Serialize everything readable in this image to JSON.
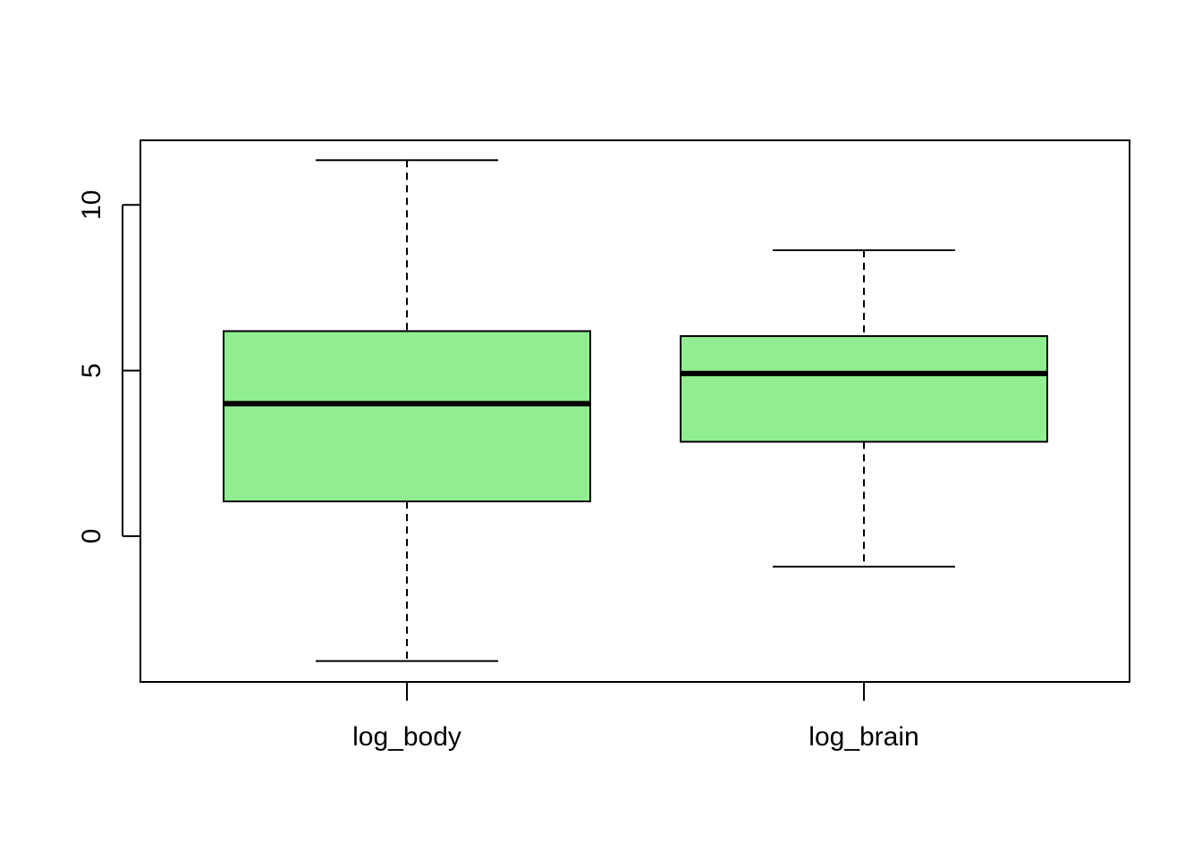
{
  "chart_data": {
    "type": "boxplot",
    "title": "",
    "xlabel": "",
    "ylabel": "",
    "categories": [
      "log_body",
      "log_brain"
    ],
    "boxes": [
      {
        "name": "log_body",
        "whisker_low": -3.77,
        "q1": 1.05,
        "median": 4.0,
        "q3": 6.19,
        "whisker_high": 11.35
      },
      {
        "name": "log_brain",
        "whisker_low": -0.92,
        "q1": 2.85,
        "median": 4.91,
        "q3": 6.04,
        "whisker_high": 8.63
      }
    ],
    "y_ticks": [
      0,
      5,
      10
    ],
    "y_tick_labels": [
      "0",
      "5",
      "10"
    ],
    "ylim": [
      -4.4,
      11.95
    ],
    "grid": false,
    "box_fill_color": "#90EE90",
    "line_color": "#000000"
  }
}
